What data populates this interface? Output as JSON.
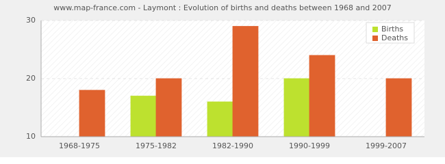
{
  "chart_data": {
    "type": "bar",
    "title": "www.map-france.com - Laymont : Evolution of births and deaths between 1968 and 2007",
    "categories": [
      "1968-1975",
      "1975-1982",
      "1982-1990",
      "1990-1999",
      "1999-2007"
    ],
    "series": [
      {
        "name": "Births",
        "color": "#bde12f",
        "values": [
          10,
          17,
          16,
          20,
          10
        ]
      },
      {
        "name": "Deaths",
        "color": "#e0622e",
        "values": [
          18,
          20,
          29,
          24,
          20
        ]
      }
    ],
    "ylim": [
      10,
      30
    ],
    "yticks": [
      10,
      20,
      30
    ],
    "grid": true,
    "legend": "top-right"
  }
}
